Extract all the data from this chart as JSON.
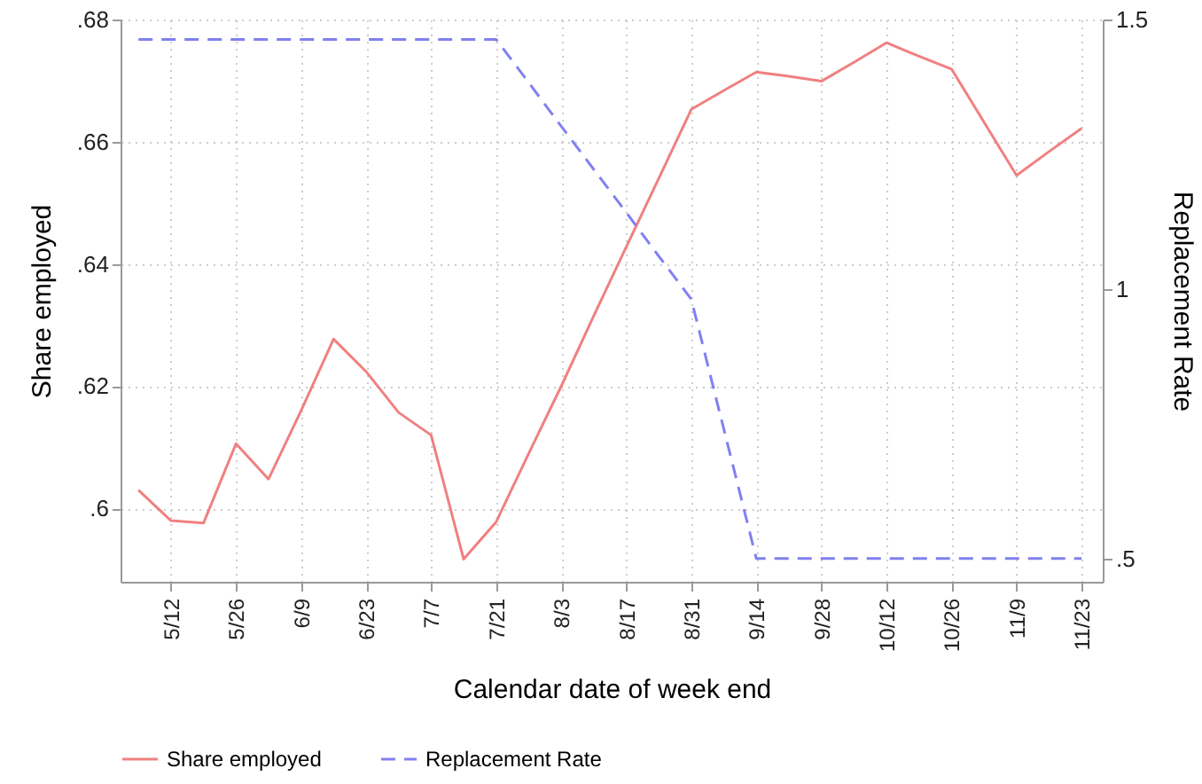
{
  "chart_data": {
    "type": "line",
    "xlabel": "Calendar date of week end",
    "ylabel": "Share employed",
    "y2label": "Replacement Rate",
    "categories": [
      null,
      "5/12",
      null,
      "5/26",
      null,
      "6/9",
      null,
      "6/23",
      null,
      "7/7",
      null,
      "7/21",
      null,
      "8/3",
      null,
      "8/17",
      null,
      "8/31",
      null,
      "9/14",
      null,
      "9/28",
      null,
      "10/12",
      null,
      "10/26",
      null,
      "11/9",
      null,
      "11/23"
    ],
    "series": [
      {
        "name": "Share employed",
        "color": "#f08080",
        "line_style": "solid",
        "values": [
          0.603,
          0.598,
          0.5976,
          0.6106,
          0.6048,
          0.616,
          0.6277,
          0.6224,
          0.6157,
          0.612,
          0.5917,
          0.5978,
          0.609,
          0.62,
          0.6315,
          0.6428,
          0.654,
          0.6653,
          0.6684,
          0.6714,
          0.6707,
          0.6699,
          0.673,
          0.6762,
          0.674,
          0.6719,
          0.6632,
          0.6545,
          0.6584,
          0.6622
        ]
      },
      {
        "name": "Replacement Rate",
        "color": "#8080f0",
        "line_style": "dashed",
        "axis": "y2",
        "values": [
          1.463,
          1.463,
          1.463,
          1.463,
          1.463,
          1.463,
          1.463,
          1.463,
          1.463,
          1.463,
          1.463,
          1.463,
          1.383,
          1.302,
          1.222,
          1.142,
          1.061,
          0.981,
          0.74,
          0.5,
          0.5,
          0.5,
          0.5,
          0.5,
          0.5,
          0.5,
          0.5,
          0.5,
          0.5,
          0.5
        ]
      }
    ],
    "ylim": [
      0.588,
      0.68
    ],
    "yticks": [
      {
        "value": 0.6,
        "label": ".6"
      },
      {
        "value": 0.62,
        "label": ".62"
      },
      {
        "value": 0.64,
        "label": ".64"
      },
      {
        "value": 0.66,
        "label": ".66"
      },
      {
        "value": 0.68,
        "label": ".68"
      }
    ],
    "y2lim": [
      0.457,
      1.5
    ],
    "y2ticks": [
      {
        "value": 0.5,
        "label": ".5"
      },
      1,
      1.5
    ],
    "grid": true,
    "legend": "bottom"
  }
}
